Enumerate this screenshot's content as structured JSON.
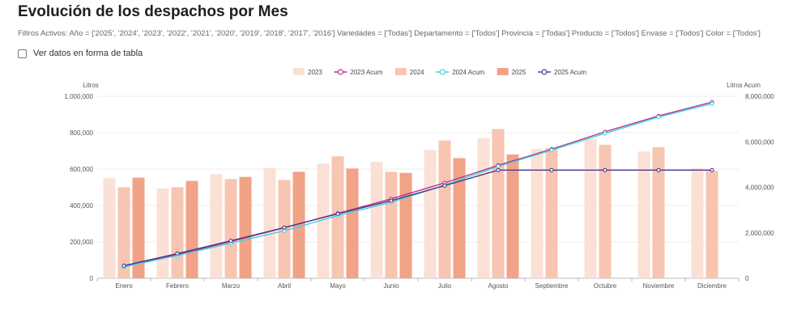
{
  "page": {
    "title": "Evolución de los despachos por Mes",
    "filters_text": "Filtros Activos: Año = ['2025', '2024', '2023', '2022', '2021', '2020', '2019', '2018', '2017', '2016'] Variedades = ['Todas'] Departamento = ['Todos'] Provincia = ['Todas'] Producto = ['Todos'] Envase = ['Todos'] Color = ['Todos']",
    "table_toggle_label": "Ver datos en forma de tabla"
  },
  "colors": {
    "bar_2023": "#fbe0d5",
    "bar_2024": "#f7c5b1",
    "bar_2025": "#f2a287",
    "line_2023": "#b5338a",
    "line_2024": "#3fd3df",
    "line_2025": "#4a3a8c"
  },
  "chart_data": {
    "type": "bar",
    "categories": [
      "Enero",
      "Febrero",
      "Marzo",
      "Abril",
      "Mayo",
      "Junio",
      "Julio",
      "Agosto",
      "Septiembre",
      "Octubre",
      "Noviembre",
      "Diciembre"
    ],
    "ylabel": "Litros",
    "y2label": "Litros Acum",
    "ylim": [
      0,
      1000000
    ],
    "y2lim": [
      0,
      8000000
    ],
    "yticks": [
      "0",
      "200,000",
      "400,000",
      "600,000",
      "800,000",
      "1,000,000"
    ],
    "y2ticks": [
      "0",
      "2,000,000",
      "4,000,000",
      "6,000,000",
      "8,000,000"
    ],
    "legend_position": "top-center",
    "grid": true,
    "series": [
      {
        "name": "2023",
        "type": "bar",
        "values": [
          550000,
          493000,
          572000,
          605000,
          630000,
          640000,
          705000,
          770000,
          710000,
          765000,
          697000,
          605000
        ]
      },
      {
        "name": "2023 Acum",
        "type": "line",
        "axis": "right",
        "values": [
          550000,
          1043000,
          1615000,
          2220000,
          2850000,
          3490000,
          4195000,
          4965000,
          5675000,
          6440000,
          7137000,
          7742000
        ]
      },
      {
        "name": "2024",
        "type": "bar",
        "values": [
          500000,
          500000,
          545000,
          540000,
          670000,
          585000,
          757000,
          820000,
          715000,
          733000,
          720000,
          590000
        ]
      },
      {
        "name": "2024 Acum",
        "type": "line",
        "axis": "right",
        "values": [
          500000,
          1000000,
          1545000,
          2085000,
          2755000,
          3340000,
          4097000,
          4917000,
          5632000,
          6365000,
          7085000,
          7675000
        ]
      },
      {
        "name": "2025",
        "type": "bar",
        "values": [
          553000,
          535000,
          557000,
          585000,
          603000,
          579000,
          660000,
          680000,
          null,
          null,
          null,
          null
        ]
      },
      {
        "name": "2025 Acum",
        "type": "line",
        "axis": "right",
        "values": [
          553000,
          1088000,
          1645000,
          2230000,
          2833000,
          3412000,
          4072000,
          4752000,
          4752000,
          4752000,
          4752000,
          4752000
        ]
      }
    ]
  }
}
